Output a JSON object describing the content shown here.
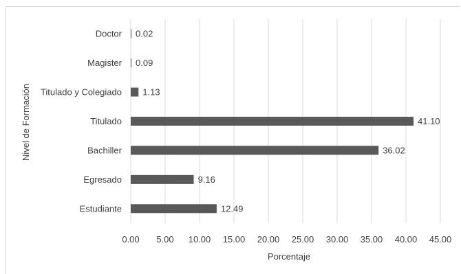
{
  "chart_data": {
    "type": "bar",
    "orientation": "horizontal",
    "categories": [
      "Estudiante",
      "Egresado",
      "Bachiller",
      "Titulado",
      "Titulado y Colegiado",
      "Magister",
      "Doctor"
    ],
    "values": [
      12.49,
      9.16,
      36.02,
      41.1,
      1.13,
      0.09,
      0.02
    ],
    "value_labels": [
      "12.49",
      "9.16",
      "36.02",
      "41.10",
      "1.13",
      "0.09",
      "0.02"
    ],
    "xlabel": "Porcentaje",
    "ylabel": "Nivel de Formación",
    "xlim": [
      0,
      45
    ],
    "xticks": [
      "0.00",
      "5.00",
      "10.00",
      "15.00",
      "20.00",
      "25.00",
      "30.00",
      "35.00",
      "40.00",
      "45.00"
    ],
    "grid": "vertical",
    "bar_color": "#595959",
    "grid_color": "#d9d9d9",
    "legend": "none"
  }
}
